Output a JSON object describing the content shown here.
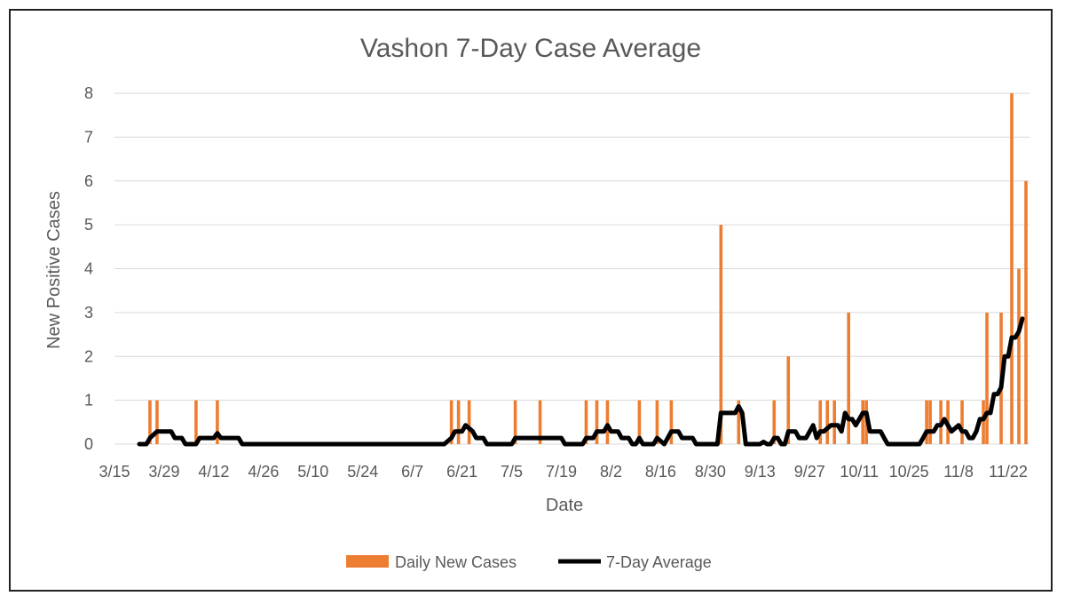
{
  "chart_data": {
    "type": "bar+line",
    "title": "Vashon 7-Day Case Average",
    "xlabel": "Date",
    "ylabel": "New Positive  Cases",
    "ylim": [
      0,
      8
    ],
    "y_ticks": [
      0,
      1,
      2,
      3,
      4,
      5,
      6,
      7,
      8
    ],
    "x_start": "3/15",
    "x_end": "11/28",
    "x_ticks": [
      "3/15",
      "3/29",
      "4/12",
      "4/26",
      "5/10",
      "5/24",
      "6/7",
      "6/21",
      "7/5",
      "7/19",
      "8/2",
      "8/16",
      "8/30",
      "9/13",
      "9/27",
      "10/11",
      "10/25",
      "11/8",
      "11/22"
    ],
    "grid": "horizontal",
    "legend_position": "bottom",
    "colors": {
      "bars": "#ED7D31",
      "line": "#000000",
      "grid": "#D9D9D9"
    },
    "series": [
      {
        "name": "Daily New Cases",
        "type": "bar",
        "points": [
          [
            "3/25",
            1
          ],
          [
            "3/27",
            1
          ],
          [
            "4/7",
            1
          ],
          [
            "4/13",
            1
          ],
          [
            "6/18",
            1
          ],
          [
            "6/20",
            1
          ],
          [
            "6/23",
            1
          ],
          [
            "7/6",
            1
          ],
          [
            "7/13",
            1
          ],
          [
            "7/26",
            1
          ],
          [
            "7/29",
            1
          ],
          [
            "8/1",
            1
          ],
          [
            "8/10",
            1
          ],
          [
            "8/15",
            1
          ],
          [
            "8/19",
            1
          ],
          [
            "9/2",
            5
          ],
          [
            "9/7",
            1
          ],
          [
            "9/17",
            1
          ],
          [
            "9/21",
            2
          ],
          [
            "9/30",
            1
          ],
          [
            "10/2",
            1
          ],
          [
            "10/4",
            1
          ],
          [
            "10/8",
            3
          ],
          [
            "10/12",
            1
          ],
          [
            "10/13",
            1
          ],
          [
            "10/30",
            1
          ],
          [
            "10/31",
            1
          ],
          [
            "11/3",
            1
          ],
          [
            "11/5",
            1
          ],
          [
            "11/9",
            1
          ],
          [
            "11/15",
            1
          ],
          [
            "11/16",
            3
          ],
          [
            "11/20",
            3
          ],
          [
            "11/23",
            8
          ],
          [
            "11/25",
            4
          ],
          [
            "11/27",
            6
          ]
        ]
      },
      {
        "name": "7-Day Average",
        "type": "line",
        "points": [
          [
            "3/22",
            0
          ],
          [
            "3/24",
            0
          ],
          [
            "3/25",
            0.14
          ],
          [
            "3/27",
            0.29
          ],
          [
            "3/31",
            0.29
          ],
          [
            "4/1",
            0.14
          ],
          [
            "4/3",
            0.14
          ],
          [
            "4/4",
            0
          ],
          [
            "4/7",
            0
          ],
          [
            "4/8",
            0.14
          ],
          [
            "4/12",
            0.14
          ],
          [
            "4/13",
            0.25
          ],
          [
            "4/14",
            0.14
          ],
          [
            "4/19",
            0.14
          ],
          [
            "4/20",
            0
          ],
          [
            "6/16",
            0
          ],
          [
            "6/18",
            0.14
          ],
          [
            "6/19",
            0.29
          ],
          [
            "6/21",
            0.29
          ],
          [
            "6/22",
            0.43
          ],
          [
            "6/24",
            0.29
          ],
          [
            "6/25",
            0.14
          ],
          [
            "6/27",
            0.14
          ],
          [
            "6/28",
            0
          ],
          [
            "7/5",
            0
          ],
          [
            "7/6",
            0.14
          ],
          [
            "7/19",
            0.14
          ],
          [
            "7/20",
            0
          ],
          [
            "7/25",
            0
          ],
          [
            "7/26",
            0.14
          ],
          [
            "7/28",
            0.14
          ],
          [
            "7/29",
            0.29
          ],
          [
            "7/31",
            0.29
          ],
          [
            "8/1",
            0.43
          ],
          [
            "8/2",
            0.29
          ],
          [
            "8/4",
            0.29
          ],
          [
            "8/5",
            0.14
          ],
          [
            "8/7",
            0.14
          ],
          [
            "8/8",
            0
          ],
          [
            "8/9",
            0
          ],
          [
            "8/10",
            0.14
          ],
          [
            "8/11",
            0
          ],
          [
            "8/14",
            0
          ],
          [
            "8/15",
            0.14
          ],
          [
            "8/17",
            0
          ],
          [
            "8/18",
            0.14
          ],
          [
            "8/19",
            0.29
          ],
          [
            "8/21",
            0.29
          ],
          [
            "8/22",
            0.14
          ],
          [
            "8/25",
            0.14
          ],
          [
            "8/26",
            0
          ],
          [
            "9/1",
            0
          ],
          [
            "9/2",
            0.71
          ],
          [
            "9/6",
            0.71
          ],
          [
            "9/7",
            0.86
          ],
          [
            "9/8",
            0.71
          ],
          [
            "9/9",
            0
          ],
          [
            "9/13",
            0
          ],
          [
            "9/14",
            0.05
          ],
          [
            "9/15",
            0
          ],
          [
            "9/16",
            0
          ],
          [
            "9/17",
            0.14
          ],
          [
            "9/18",
            0.14
          ],
          [
            "9/19",
            0
          ],
          [
            "9/20",
            0
          ],
          [
            "9/21",
            0.29
          ],
          [
            "9/23",
            0.29
          ],
          [
            "9/24",
            0.14
          ],
          [
            "9/26",
            0.14
          ],
          [
            "9/28",
            0.43
          ],
          [
            "9/29",
            0.14
          ],
          [
            "9/30",
            0.29
          ],
          [
            "10/1",
            0.29
          ],
          [
            "10/3",
            0.43
          ],
          [
            "10/5",
            0.43
          ],
          [
            "10/6",
            0.29
          ],
          [
            "10/7",
            0.71
          ],
          [
            "10/8",
            0.57
          ],
          [
            "10/9",
            0.57
          ],
          [
            "10/10",
            0.43
          ],
          [
            "10/11",
            0.57
          ],
          [
            "10/12",
            0.71
          ],
          [
            "10/13",
            0.71
          ],
          [
            "10/14",
            0.29
          ],
          [
            "10/17",
            0.29
          ],
          [
            "10/18",
            0.14
          ],
          [
            "10/19",
            0
          ],
          [
            "10/28",
            0
          ],
          [
            "10/29",
            0.14
          ],
          [
            "10/30",
            0.29
          ],
          [
            "11/1",
            0.29
          ],
          [
            "11/2",
            0.43
          ],
          [
            "11/3",
            0.43
          ],
          [
            "11/4",
            0.57
          ],
          [
            "11/6",
            0.29
          ],
          [
            "11/8",
            0.43
          ],
          [
            "11/9",
            0.29
          ],
          [
            "11/10",
            0.29
          ],
          [
            "11/11",
            0.14
          ],
          [
            "11/12",
            0.14
          ],
          [
            "11/13",
            0.29
          ],
          [
            "11/14",
            0.57
          ],
          [
            "11/15",
            0.57
          ],
          [
            "11/16",
            0.71
          ],
          [
            "11/17",
            0.71
          ],
          [
            "11/18",
            1.14
          ],
          [
            "11/19",
            1.14
          ],
          [
            "11/20",
            1.29
          ],
          [
            "11/21",
            2.0
          ],
          [
            "11/22",
            2.0
          ],
          [
            "11/23",
            2.43
          ],
          [
            "11/24",
            2.43
          ],
          [
            "11/25",
            2.57
          ],
          [
            "11/26",
            2.86
          ]
        ]
      }
    ]
  }
}
